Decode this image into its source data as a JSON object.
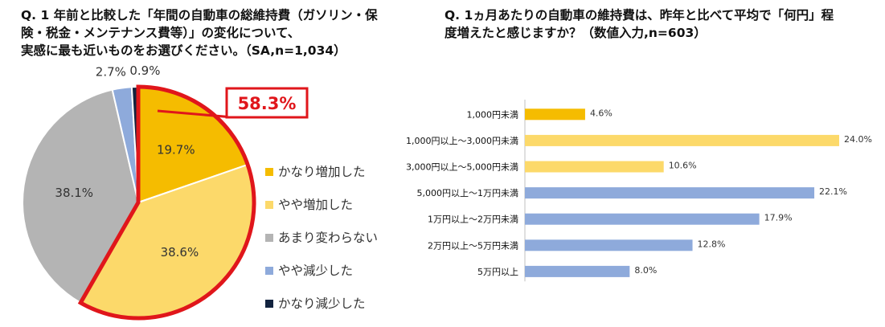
{
  "q1": {
    "title_lines": [
      "Q. 1 年前と比較した「年間の自動車の総維持費（ガソリン・保",
      "険・税金・メンテナンス費等）」の変化について、",
      "実感に最も近いものをお選びください。（SA,n=1,034）"
    ],
    "callout": "58.3%"
  },
  "q2": {
    "title_lines": [
      "Q. 1ヵ月あたりの自動車の維持費は、昨年と比べて平均で「何円」程",
      "度増えたと感じますか？（数値入力,n=603）"
    ]
  },
  "chart_data": [
    {
      "type": "pie",
      "start_angle_deg": 0,
      "direction": "clockwise",
      "slices": [
        {
          "label": "かなり増加した",
          "value": 19.7,
          "display": "19.7%",
          "color": "#f5bc00",
          "label_position": "inside"
        },
        {
          "label": "やや増加した",
          "value": 38.6,
          "display": "38.6%",
          "color": "#fcd96a",
          "label_position": "inside"
        },
        {
          "label": "あまり変わらない",
          "value": 38.1,
          "display": "38.1%",
          "color": "#b4b4b4",
          "label_position": "inside"
        },
        {
          "label": "やや減少した",
          "value": 2.7,
          "display": "2.7%",
          "color": "#8eaadb",
          "label_position": "outside"
        },
        {
          "label": "かなり減少した",
          "value": 0.9,
          "display": "0.9%",
          "color": "#12233f",
          "label_position": "outside"
        }
      ],
      "legend": {
        "position": "right"
      },
      "highlight": {
        "slices": [
          0,
          1
        ],
        "value": "58.3%",
        "color": "#e0161b"
      }
    },
    {
      "type": "bar",
      "orientation": "horizontal",
      "categories": [
        "1,000円未満",
        "1,000円以上～3,000円未満",
        "3,000円以上～5,000円未満",
        "5,000円以上～1万円未満",
        "1万円以上～2万円未満",
        "2万円以上～5万円未満",
        "5万円以上"
      ],
      "values": [
        4.6,
        24.0,
        10.6,
        22.1,
        17.9,
        12.8,
        8.0
      ],
      "value_labels": [
        "4.6%",
        "24.0%",
        "10.6%",
        "22.1%",
        "17.9%",
        "12.8%",
        "8.0%"
      ],
      "colors": [
        "#f5bc00",
        "#fcd96a",
        "#fcd96a",
        "#8eaadb",
        "#8eaadb",
        "#8eaadb",
        "#8eaadb"
      ],
      "xlim": [
        0,
        24
      ],
      "grid": false
    }
  ]
}
